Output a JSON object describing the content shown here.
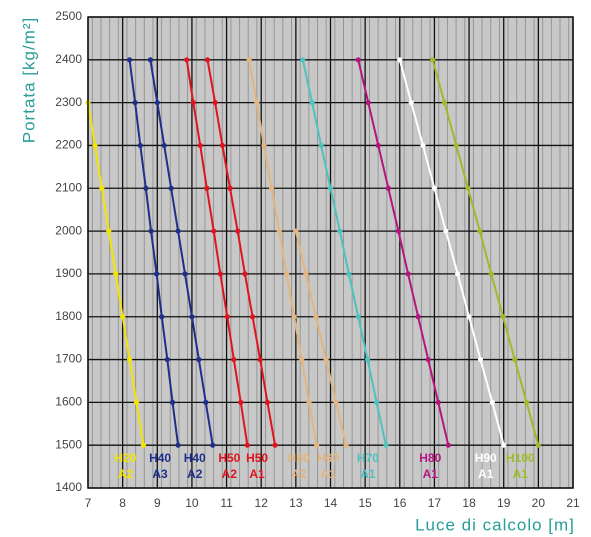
{
  "chart_data": {
    "type": "line",
    "xlabel": "Luce di calcolo [m]",
    "ylabel": "Portata [kg/m²]",
    "xlim": [
      7,
      21
    ],
    "xticks": [
      7,
      8,
      9,
      10,
      11,
      12,
      13,
      14,
      15,
      16,
      17,
      18,
      19,
      20,
      21
    ],
    "ylim": [
      1400,
      2500
    ],
    "yticks": [
      1400,
      1500,
      1600,
      1700,
      1800,
      1900,
      2000,
      2100,
      2200,
      2300,
      2400,
      2500
    ],
    "grid": true,
    "series": [
      {
        "name": "H20",
        "label2": "A2",
        "color": "#f2e600",
        "x": [
          7.0,
          7.2,
          7.4,
          7.6,
          7.8,
          8.0,
          8.2,
          8.4,
          8.6
        ],
        "y": [
          2300,
          2200,
          2100,
          2000,
          1900,
          1800,
          1700,
          1600,
          1500
        ]
      },
      {
        "name": "H40",
        "label2": "A3",
        "color": "#1f2f8a",
        "x": [
          8.2,
          8.36,
          8.51,
          8.67,
          8.82,
          8.98,
          9.13,
          9.29,
          9.44,
          9.6
        ],
        "y": [
          2400,
          2300,
          2200,
          2100,
          2000,
          1900,
          1800,
          1700,
          1600,
          1500
        ]
      },
      {
        "name": "H40",
        "label2": "A2",
        "color": "#1f2f8a",
        "x": [
          8.8,
          9.0,
          9.2,
          9.4,
          9.6,
          9.8,
          10.0,
          10.2,
          10.4,
          10.6
        ],
        "y": [
          2400,
          2300,
          2200,
          2100,
          2000,
          1900,
          1800,
          1700,
          1600,
          1500
        ]
      },
      {
        "name": "H50",
        "label2": "A2",
        "color": "#e0141e",
        "x": [
          9.85,
          10.04,
          10.24,
          10.43,
          10.63,
          10.82,
          11.02,
          11.21,
          11.41,
          11.6
        ],
        "y": [
          2400,
          2300,
          2200,
          2100,
          2000,
          1900,
          1800,
          1700,
          1600,
          1500
        ]
      },
      {
        "name": "H50",
        "label2": "A1",
        "color": "#e0141e",
        "x": [
          10.45,
          10.67,
          10.88,
          11.1,
          11.32,
          11.53,
          11.75,
          11.97,
          12.18,
          12.4
        ],
        "y": [
          2400,
          2300,
          2200,
          2100,
          2000,
          1900,
          1800,
          1700,
          1600,
          1500
        ]
      },
      {
        "name": "H60",
        "label2": "A2",
        "color": "#e3b57f",
        "x": [
          11.65,
          11.87,
          12.08,
          12.3,
          12.52,
          12.73,
          12.95,
          13.17,
          13.38,
          13.6
        ],
        "y": [
          2400,
          2300,
          2200,
          2100,
          2000,
          1900,
          1800,
          1700,
          1600,
          1500
        ]
      },
      {
        "name": "H60",
        "label2": "A1",
        "color": "#e3b57f",
        "x": [
          13.0,
          13.29,
          13.58,
          13.87,
          14.16,
          14.45
        ],
        "y": [
          2000,
          1900,
          1800,
          1700,
          1600,
          1500
        ]
      },
      {
        "name": "H70",
        "label2": "A1",
        "color": "#4cc3c0",
        "x": [
          13.2,
          13.47,
          13.73,
          14.0,
          14.27,
          14.53,
          14.8,
          15.07,
          15.33,
          15.6
        ],
        "y": [
          2400,
          2300,
          2200,
          2100,
          2000,
          1900,
          1800,
          1700,
          1600,
          1500
        ]
      },
      {
        "name": "H80",
        "label2": "A1",
        "color": "#b5157f",
        "x": [
          14.8,
          15.09,
          15.38,
          15.67,
          15.96,
          16.24,
          16.53,
          16.82,
          17.11,
          17.4
        ],
        "y": [
          2400,
          2300,
          2200,
          2100,
          2000,
          1900,
          1800,
          1700,
          1600,
          1500
        ]
      },
      {
        "name": "H90",
        "label2": "A1",
        "color": "#ffffff",
        "x": [
          16.0,
          16.33,
          16.67,
          17.0,
          17.33,
          17.67,
          18.0,
          18.33,
          18.67,
          19.0
        ],
        "y": [
          2400,
          2300,
          2200,
          2100,
          2000,
          1900,
          1800,
          1700,
          1600,
          1500
        ]
      },
      {
        "name": "H100",
        "label2": "A1",
        "color": "#9dbb2a",
        "x": [
          16.95,
          17.29,
          17.63,
          17.97,
          18.31,
          18.64,
          18.98,
          19.32,
          19.66,
          20.0
        ],
        "y": [
          2400,
          2300,
          2200,
          2100,
          2000,
          1900,
          1800,
          1700,
          1600,
          1500
        ]
      }
    ]
  }
}
